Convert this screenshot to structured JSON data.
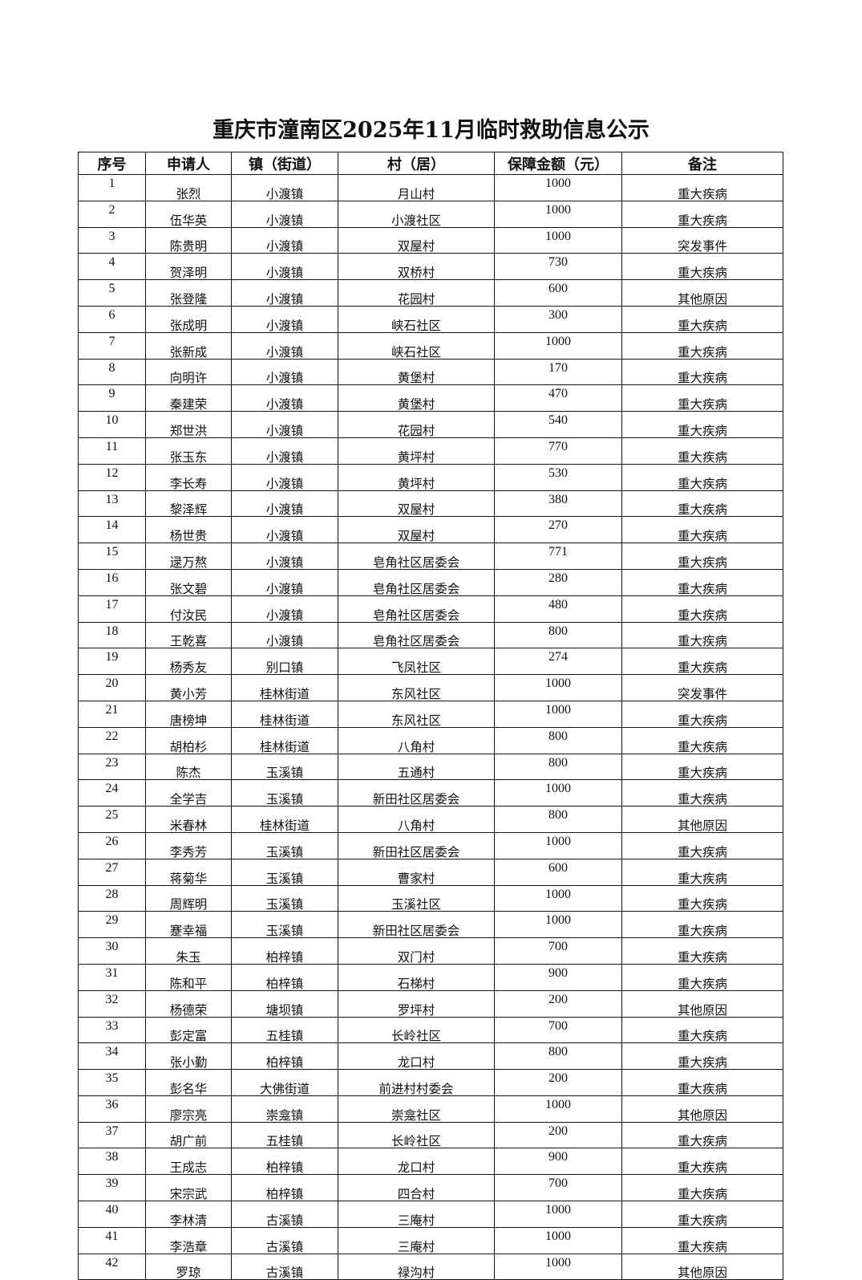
{
  "title": "重庆市潼南区2025年11月临时救助信息公示",
  "table": {
    "headers": [
      "序号",
      "申请人",
      "镇（街道）",
      "村（居）",
      "保障金额（元）",
      "备注"
    ],
    "rows": [
      [
        "1",
        "张烈",
        "小渡镇",
        "月山村",
        "1000",
        "重大疾病"
      ],
      [
        "2",
        "伍华英",
        "小渡镇",
        "小渡社区",
        "1000",
        "重大疾病"
      ],
      [
        "3",
        "陈贵明",
        "小渡镇",
        "双屋村",
        "1000",
        "突发事件"
      ],
      [
        "4",
        "贺泽明",
        "小渡镇",
        "双桥村",
        "730",
        "重大疾病"
      ],
      [
        "5",
        "张登隆",
        "小渡镇",
        "花园村",
        "600",
        "其他原因"
      ],
      [
        "6",
        "张成明",
        "小渡镇",
        "峡石社区",
        "300",
        "重大疾病"
      ],
      [
        "7",
        "张新成",
        "小渡镇",
        "峡石社区",
        "1000",
        "重大疾病"
      ],
      [
        "8",
        "向明许",
        "小渡镇",
        "黄堡村",
        "170",
        "重大疾病"
      ],
      [
        "9",
        "秦建荣",
        "小渡镇",
        "黄堡村",
        "470",
        "重大疾病"
      ],
      [
        "10",
        "郑世洪",
        "小渡镇",
        "花园村",
        "540",
        "重大疾病"
      ],
      [
        "11",
        "张玉东",
        "小渡镇",
        "黄坪村",
        "770",
        "重大疾病"
      ],
      [
        "12",
        "李长寿",
        "小渡镇",
        "黄坪村",
        "530",
        "重大疾病"
      ],
      [
        "13",
        "黎泽辉",
        "小渡镇",
        "双屋村",
        "380",
        "重大疾病"
      ],
      [
        "14",
        "杨世贵",
        "小渡镇",
        "双屋村",
        "270",
        "重大疾病"
      ],
      [
        "15",
        "逯万熬",
        "小渡镇",
        "皂角社区居委会",
        "771",
        "重大疾病"
      ],
      [
        "16",
        "张文碧",
        "小渡镇",
        "皂角社区居委会",
        "280",
        "重大疾病"
      ],
      [
        "17",
        "付汝民",
        "小渡镇",
        "皂角社区居委会",
        "480",
        "重大疾病"
      ],
      [
        "18",
        "王乾喜",
        "小渡镇",
        "皂角社区居委会",
        "800",
        "重大疾病"
      ],
      [
        "19",
        "杨秀友",
        "别口镇",
        "飞凤社区",
        "274",
        "重大疾病"
      ],
      [
        "20",
        "黄小芳",
        "桂林街道",
        "东风社区",
        "1000",
        "突发事件"
      ],
      [
        "21",
        "唐榜坤",
        "桂林街道",
        "东风社区",
        "1000",
        "重大疾病"
      ],
      [
        "22",
        "胡柏杉",
        "桂林街道",
        "八角村",
        "800",
        "重大疾病"
      ],
      [
        "23",
        "陈杰",
        "玉溪镇",
        "五通村",
        "800",
        "重大疾病"
      ],
      [
        "24",
        "全学吉",
        "玉溪镇",
        "新田社区居委会",
        "1000",
        "重大疾病"
      ],
      [
        "25",
        "米春林",
        "桂林街道",
        "八角村",
        "800",
        "其他原因"
      ],
      [
        "26",
        "李秀芳",
        "玉溪镇",
        "新田社区居委会",
        "1000",
        "重大疾病"
      ],
      [
        "27",
        "蒋菊华",
        "玉溪镇",
        "曹家村",
        "600",
        "重大疾病"
      ],
      [
        "28",
        "周辉明",
        "玉溪镇",
        "玉溪社区",
        "1000",
        "重大疾病"
      ],
      [
        "29",
        "蹇幸福",
        "玉溪镇",
        "新田社区居委会",
        "1000",
        "重大疾病"
      ],
      [
        "30",
        "朱玉",
        "柏梓镇",
        "双门村",
        "700",
        "重大疾病"
      ],
      [
        "31",
        "陈和平",
        "柏梓镇",
        "石梯村",
        "900",
        "重大疾病"
      ],
      [
        "32",
        "杨德荣",
        "塘坝镇",
        "罗坪村",
        "200",
        "其他原因"
      ],
      [
        "33",
        "彭定富",
        "五桂镇",
        "长岭社区",
        "700",
        "重大疾病"
      ],
      [
        "34",
        "张小勤",
        "柏梓镇",
        "龙口村",
        "800",
        "重大疾病"
      ],
      [
        "35",
        "彭名华",
        "大佛街道",
        "前进村村委会",
        "200",
        "重大疾病"
      ],
      [
        "36",
        "廖宗亮",
        "崇龛镇",
        "崇龛社区",
        "1000",
        "其他原因"
      ],
      [
        "37",
        "胡广前",
        "五桂镇",
        "长岭社区",
        "200",
        "重大疾病"
      ],
      [
        "38",
        "王成志",
        "柏梓镇",
        "龙口村",
        "900",
        "重大疾病"
      ],
      [
        "39",
        "宋宗武",
        "柏梓镇",
        "四合村",
        "700",
        "重大疾病"
      ],
      [
        "40",
        "李林清",
        "古溪镇",
        "三庵村",
        "1000",
        "重大疾病"
      ],
      [
        "41",
        "李浩章",
        "古溪镇",
        "三庵村",
        "1000",
        "重大疾病"
      ],
      [
        "42",
        "罗琼",
        "古溪镇",
        "禄沟村",
        "1000",
        "其他原因"
      ]
    ]
  }
}
